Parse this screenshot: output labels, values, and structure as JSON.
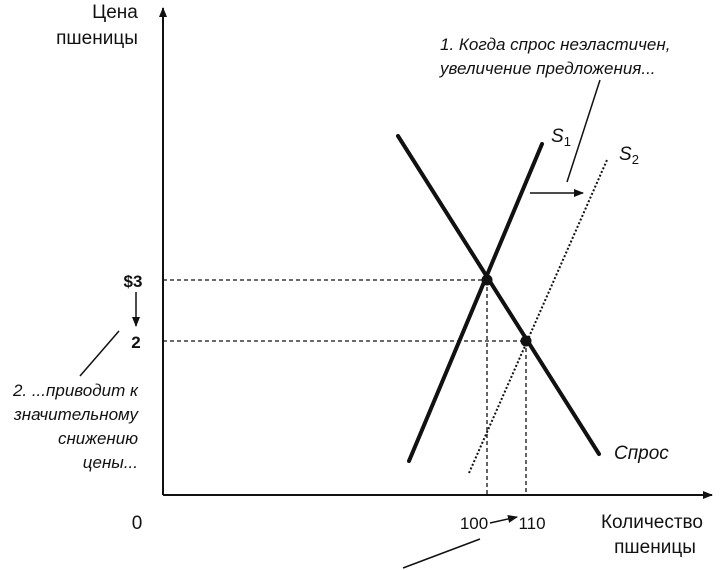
{
  "axes": {
    "y_title_line1": "Цена",
    "y_title_line2": "пшеницы",
    "x_title_line1": "Количество",
    "x_title_line2": "пшеницы",
    "origin": "0"
  },
  "ticks": {
    "price_high": "$3",
    "price_low": "2",
    "qty_low": "100",
    "qty_high": "110"
  },
  "curves": {
    "s1_letter": "S",
    "s1_sub": "1",
    "s2_letter": "S",
    "s2_sub": "2",
    "demand": "Спрос"
  },
  "annotations": {
    "note1_line1": "1. Когда спрос неэластичен,",
    "note1_line2": "увеличение предложения...",
    "note2_line1": "2. ...приводит к",
    "note2_line2": "значительному",
    "note2_line3": "снижению",
    "note2_line4": "цены..."
  },
  "chart_data": {
    "type": "line",
    "series": [
      {
        "name": "S1",
        "points": [
          [
            97,
            1.0
          ],
          [
            102,
            5.5
          ]
        ]
      },
      {
        "name": "S2",
        "points": [
          [
            107,
            1.2
          ],
          [
            112,
            5.4
          ]
        ]
      },
      {
        "name": "Спрос",
        "points": [
          [
            95,
            5.6
          ],
          [
            113,
            1.6
          ]
        ]
      }
    ],
    "equilibria": [
      {
        "quantity": 100,
        "price": 3
      },
      {
        "quantity": 110,
        "price": 2
      }
    ],
    "xlabel": "Количество пшеницы",
    "ylabel": "Цена пшеницы",
    "xticks": [
      100,
      110
    ],
    "yticks": [
      2,
      3
    ],
    "colors": {
      "ink": "#111111"
    }
  }
}
